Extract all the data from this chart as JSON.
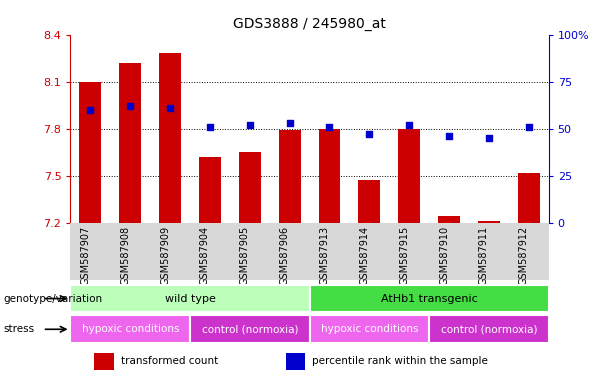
{
  "title": "GDS3888 / 245980_at",
  "samples": [
    "GSM587907",
    "GSM587908",
    "GSM587909",
    "GSM587904",
    "GSM587905",
    "GSM587906",
    "GSM587913",
    "GSM587914",
    "GSM587915",
    "GSM587910",
    "GSM587911",
    "GSM587912"
  ],
  "bar_values": [
    8.1,
    8.22,
    8.28,
    7.62,
    7.65,
    7.79,
    7.8,
    7.47,
    7.8,
    7.24,
    7.21,
    7.52
  ],
  "dot_values": [
    60,
    62,
    61,
    51,
    52,
    53,
    51,
    47,
    52,
    46,
    45,
    51
  ],
  "y_min": 7.2,
  "y_max": 8.4,
  "y_ticks": [
    7.2,
    7.5,
    7.8,
    8.1,
    8.4
  ],
  "y2_ticks": [
    0,
    25,
    50,
    75,
    100
  ],
  "bar_color": "#cc0000",
  "dot_color": "#0000cc",
  "genotype_groups": [
    {
      "label": "wild type",
      "start": 0,
      "end": 6,
      "color": "#bbffbb"
    },
    {
      "label": "AtHb1 transgenic",
      "start": 6,
      "end": 12,
      "color": "#44dd44"
    }
  ],
  "stress_groups": [
    {
      "label": "hypoxic conditions",
      "start": 0,
      "end": 3,
      "color": "#ee66ee"
    },
    {
      "label": "control (normoxia)",
      "start": 3,
      "end": 6,
      "color": "#cc33cc"
    },
    {
      "label": "hypoxic conditions",
      "start": 6,
      "end": 9,
      "color": "#ee66ee"
    },
    {
      "label": "control (normoxia)",
      "start": 9,
      "end": 12,
      "color": "#cc33cc"
    }
  ],
  "legend_items": [
    {
      "label": "transformed count",
      "color": "#cc0000"
    },
    {
      "label": "percentile rank within the sample",
      "color": "#0000cc"
    }
  ],
  "left_label_genotype": "genotype/variation",
  "left_label_stress": "stress",
  "bg_color": "#ffffff",
  "tick_label_color_left": "#cc0000",
  "tick_label_color_right": "#0000cc",
  "gridline_color": "#000000",
  "xtick_bg": "#d8d8d8"
}
